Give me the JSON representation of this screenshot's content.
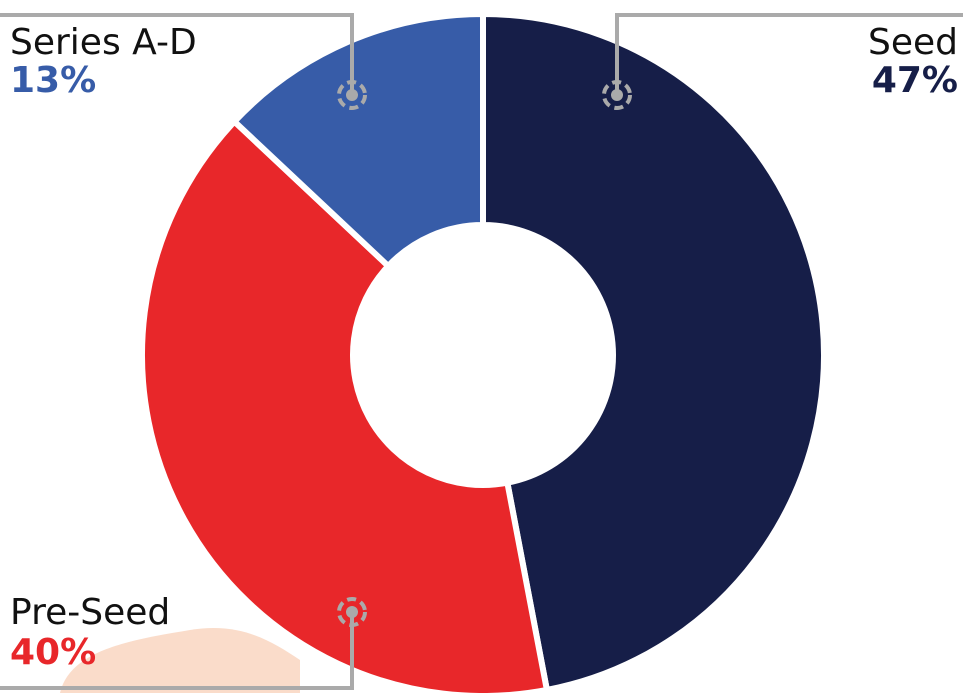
{
  "chart_data": {
    "type": "donut",
    "categories": [
      "Seed",
      "Pre-Seed",
      "Series A-D"
    ],
    "values": [
      47,
      40,
      13
    ],
    "value_labels": [
      "47%",
      "40%",
      "13%"
    ],
    "colors": [
      "#161e48",
      "#e8272a",
      "#375ca8"
    ]
  }
}
